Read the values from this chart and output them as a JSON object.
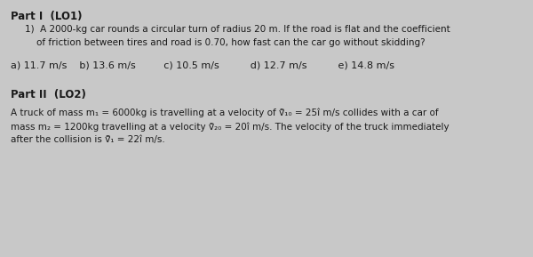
{
  "bg_color": "#c8c8c8",
  "text_color": "#1a1a1a",
  "part1_header": "Part I  (LO1)",
  "q1_line1": "1)  A 2000-kg car rounds a circular turn of radius 20 m. If the road is flat and the coefficient",
  "q1_line2": "    of friction between tires and road is 0.70, how fast can the car go without skidding?",
  "answers": "a) 11.7 m/s    b) 13.6 m/s         c) 10.5 m/s          d) 12.7 m/s          e) 14.8 m/s",
  "part2_header": "Part II  (LO2)",
  "p2_line1": "A truck of mass m₁ = 6000kg is travelling at a velocity of ṽ⃗₁₀ = 25î m/s collides with a car of",
  "p2_line2": "mass m₂ = 1200kg travelling at a velocity ṽ⃗₂₀ = 20î m/s. The velocity of the truck immediately",
  "p2_line3": "after the collision is ṽ⃗₁ = 22î m/s.",
  "font_size_header": 8.5,
  "font_size_body": 7.5,
  "font_size_answers": 8.0,
  "fig_width": 6.0,
  "fig_height": 2.89,
  "dpi": 100
}
